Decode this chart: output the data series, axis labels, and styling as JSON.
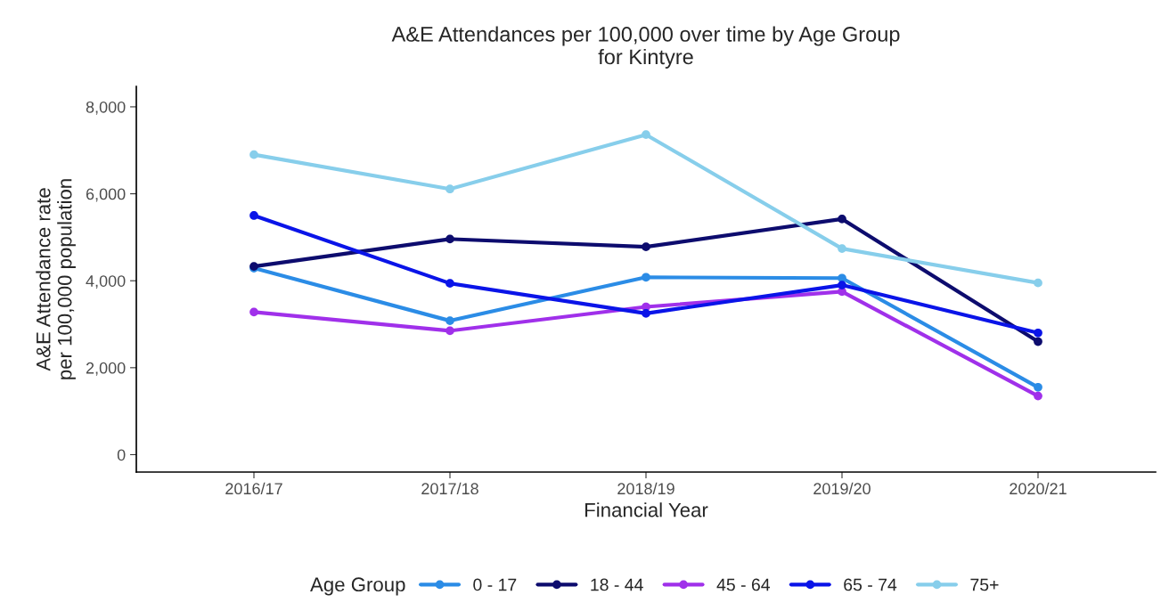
{
  "chart_data": {
    "type": "line",
    "title": "A&E Attendances per 100,000 over time by Age Group\nfor Kintyre",
    "xlabel": "Financial Year",
    "ylabel": "A&E Attendance rate\nper 100,000 population",
    "legend_title": "Age Group",
    "categories": [
      "2016/17",
      "2017/18",
      "2018/19",
      "2019/20",
      "2020/21"
    ],
    "series": [
      {
        "name": "0 - 17",
        "color": "#2b8ce6",
        "values": [
          4290,
          3080,
          4080,
          4060,
          1550
        ]
      },
      {
        "name": "18 - 44",
        "color": "#0d0c6e",
        "values": [
          4330,
          4960,
          4780,
          5420,
          2600
        ]
      },
      {
        "name": "45 - 64",
        "color": "#a030ea",
        "values": [
          3280,
          2850,
          3400,
          3750,
          1350
        ]
      },
      {
        "name": "65 - 74",
        "color": "#0a14e8",
        "values": [
          5500,
          3940,
          3250,
          3900,
          2800
        ]
      },
      {
        "name": "75+",
        "color": "#87ceeb",
        "values": [
          6900,
          6110,
          7360,
          4740,
          3950
        ]
      }
    ],
    "ylim": [
      -400,
      8470
    ],
    "yticks": [
      {
        "value": 0,
        "label": "0"
      },
      {
        "value": 2000,
        "label": "2,000"
      },
      {
        "value": 4000,
        "label": "4,000"
      },
      {
        "value": 6000,
        "label": "6,000"
      },
      {
        "value": 8000,
        "label": "8,000"
      }
    ],
    "marker": "circle",
    "line_style": "solid",
    "grid": false,
    "legend": "bottom"
  }
}
